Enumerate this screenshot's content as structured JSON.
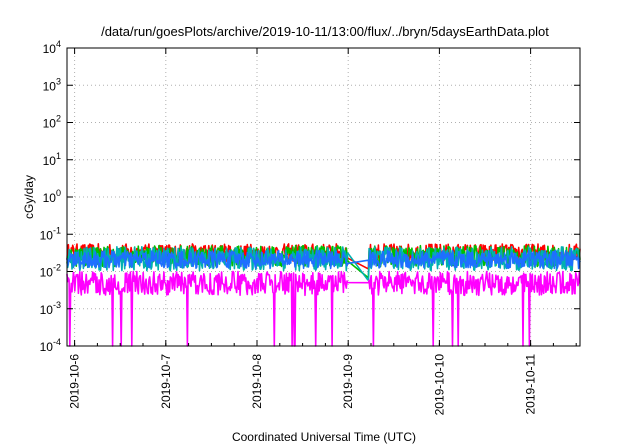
{
  "chart_data": {
    "type": "line",
    "title": "/data/run/goesPlots/archive/2019-10-11/13:00/flux/../bryn/5daysEarthData.plot",
    "xlabel": "Coordinated Universal Time (UTC)",
    "ylabel": "cGy/day",
    "y_scale": "log",
    "ylim": [
      0.0001,
      10000
    ],
    "y_ticks": [
      {
        "value": 0.0001,
        "base": "10",
        "exp": "-4"
      },
      {
        "value": 0.001,
        "base": "10",
        "exp": "-3"
      },
      {
        "value": 0.01,
        "base": "10",
        "exp": "-2"
      },
      {
        "value": 0.1,
        "base": "10",
        "exp": "-1"
      },
      {
        "value": 1,
        "base": "10",
        "exp": "0"
      },
      {
        "value": 10,
        "base": "10",
        "exp": "1"
      },
      {
        "value": 100,
        "base": "10",
        "exp": "2"
      },
      {
        "value": 1000,
        "base": "10",
        "exp": "3"
      },
      {
        "value": 10000,
        "base": "10",
        "exp": "4"
      }
    ],
    "xlim": [
      "2019-10-05 22:00",
      "2019-10-11 13:00"
    ],
    "x_ticks": [
      "2019-10-6",
      "2019-10-7",
      "2019-10-8",
      "2019-10-9",
      "2019-10-10",
      "2019-10-11"
    ],
    "grid": true,
    "gap": {
      "start": "2019-10-09 00:00",
      "end": "2019-10-09 05:00"
    },
    "series": [
      {
        "color": "#ff0000",
        "baseline": 0.032,
        "spread": 0.3,
        "gap_end_value": 0.012
      },
      {
        "color": "#00c000",
        "baseline": 0.026,
        "spread": 0.35,
        "gap_end_value": 0.007
      },
      {
        "color": "#00b0b0",
        "baseline": 0.022,
        "spread": 0.4,
        "gap_end_value": 0.006
      },
      {
        "color": "#1e6fff",
        "baseline": 0.021,
        "spread": 0.3,
        "gap_end_value": 0.02
      },
      {
        "color": "#ff00ff",
        "baseline": 0.0048,
        "spread": 0.4,
        "gap_end_value": 0.005
      }
    ]
  }
}
